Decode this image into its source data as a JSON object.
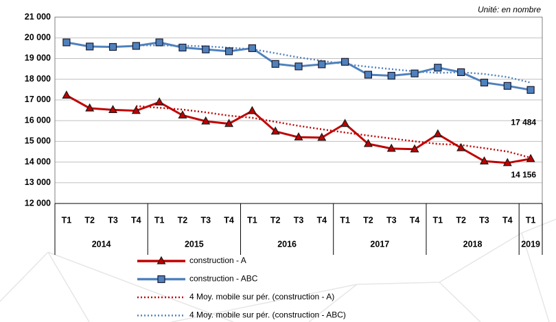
{
  "chart_data": {
    "type": "line",
    "annotation": "Unité: en nombre",
    "categories": [
      "T1",
      "T2",
      "T3",
      "T4",
      "T1",
      "T2",
      "T3",
      "T4",
      "T1",
      "T2",
      "T3",
      "T4",
      "T1",
      "T2",
      "T3",
      "T4",
      "T1",
      "T2",
      "T3",
      "T4",
      "T1"
    ],
    "groups": [
      {
        "label": "2014",
        "size": 4
      },
      {
        "label": "2015",
        "size": 4
      },
      {
        "label": "2016",
        "size": 4
      },
      {
        "label": "2017",
        "size": 4
      },
      {
        "label": "2018",
        "size": 4
      },
      {
        "label": "2019",
        "size": 1
      }
    ],
    "ylim": [
      12000,
      21000
    ],
    "yticks": [
      {
        "value": 12000,
        "label": "12 000"
      },
      {
        "value": 13000,
        "label": "13 000"
      },
      {
        "value": 14000,
        "label": "14 000"
      },
      {
        "value": 15000,
        "label": "15 000"
      },
      {
        "value": 16000,
        "label": "16 000"
      },
      {
        "value": 17000,
        "label": "17 000"
      },
      {
        "value": 18000,
        "label": "18 000"
      },
      {
        "value": 19000,
        "label": "19 000"
      },
      {
        "value": 20000,
        "label": "20 000"
      },
      {
        "value": 21000,
        "label": "21 000"
      }
    ],
    "grid": true,
    "series": [
      {
        "name": "construction - A",
        "color": "#c00000",
        "style": "solid",
        "marker": "triangle",
        "values": [
          17220,
          16600,
          16520,
          16480,
          16890,
          16260,
          15970,
          15850,
          16470,
          15480,
          15200,
          15180,
          15850,
          14880,
          14650,
          14620,
          15350,
          14680,
          14040,
          13960,
          14156
        ],
        "value_labels": [
          null,
          null,
          null,
          null,
          null,
          null,
          null,
          null,
          null,
          null,
          null,
          null,
          null,
          null,
          null,
          null,
          null,
          null,
          null,
          null,
          "14 156"
        ]
      },
      {
        "name": "construction - ABC",
        "color": "#4f81bd",
        "style": "solid",
        "marker": "square",
        "values": [
          19780,
          19580,
          19560,
          19610,
          19780,
          19530,
          19440,
          19350,
          19500,
          18740,
          18620,
          18720,
          18840,
          18220,
          18170,
          18280,
          18560,
          18340,
          17840,
          17680,
          17484
        ],
        "value_labels": [
          null,
          null,
          null,
          null,
          null,
          null,
          null,
          null,
          null,
          null,
          null,
          null,
          null,
          null,
          null,
          null,
          null,
          null,
          null,
          null,
          "17 484"
        ]
      },
      {
        "name": "4 Moy. mobile sur pér. (construction - A)",
        "color": "#c00000",
        "style": "dotted",
        "marker": null,
        "values": [
          null,
          null,
          null,
          16705,
          16623,
          16538,
          16400,
          16243,
          16138,
          15943,
          15750,
          15583,
          15428,
          15278,
          15140,
          15000,
          14875,
          14825,
          14673,
          14508,
          14209
        ]
      },
      {
        "name": "4 Moy. mobile sur pér. (construction - ABC)",
        "color": "#4f81bd",
        "style": "dotted",
        "marker": null,
        "values": [
          null,
          null,
          null,
          19633,
          19633,
          19620,
          19590,
          19525,
          19455,
          19258,
          19053,
          18895,
          18730,
          18600,
          18488,
          18378,
          18308,
          18338,
          18255,
          18105,
          17836
        ]
      }
    ]
  }
}
